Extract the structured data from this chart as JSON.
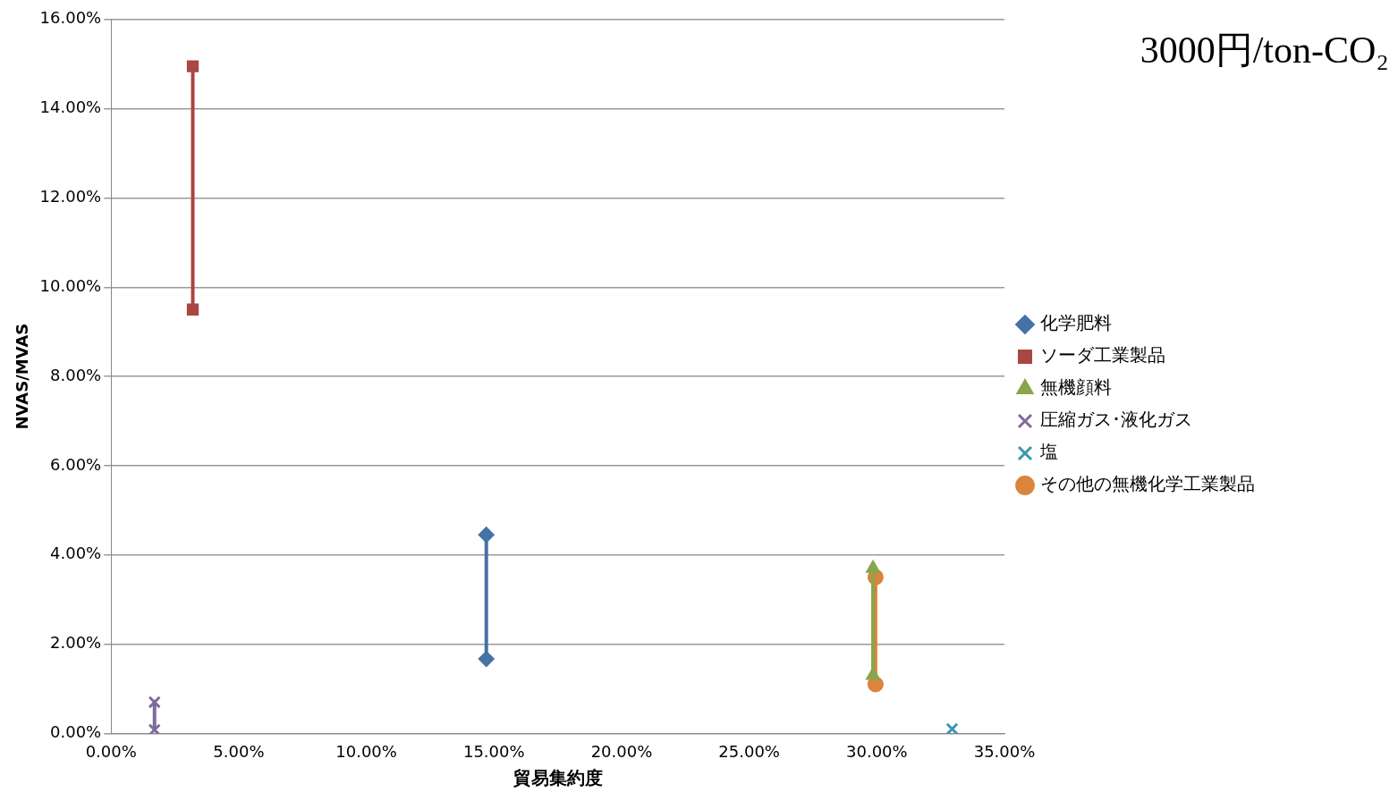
{
  "chart_data": {
    "type": "line",
    "xlabel": "貿易集約度",
    "ylabel": "NVAS/MVAS",
    "annotations": [
      "3000円/ton-CO₂"
    ],
    "xlim": [
      0,
      35
    ],
    "xticks": [
      {
        "value": 0,
        "label": "0.00%"
      },
      {
        "value": 5,
        "label": "5.00%"
      },
      {
        "value": 10,
        "label": "10.00%"
      },
      {
        "value": 15,
        "label": "15.00%"
      },
      {
        "value": 20,
        "label": "20.00%"
      },
      {
        "value": 25,
        "label": "25.00%"
      },
      {
        "value": 30,
        "label": "30.00%"
      },
      {
        "value": 35,
        "label": "35.00%"
      }
    ],
    "ylim": [
      0,
      16
    ],
    "yticks": [
      {
        "value": 0,
        "label": "0.00%"
      },
      {
        "value": 2,
        "label": "2.00%"
      },
      {
        "value": 4,
        "label": "4.00%"
      },
      {
        "value": 6,
        "label": "6.00%"
      },
      {
        "value": 8,
        "label": "8.00%"
      },
      {
        "value": 10,
        "label": "10.00%"
      },
      {
        "value": 12,
        "label": "12.00%"
      },
      {
        "value": 14,
        "label": "14.00%"
      },
      {
        "value": 16,
        "label": "16.00%"
      }
    ],
    "grid": "y",
    "legend": "right",
    "line_style": "solid",
    "series": [
      {
        "name": "化学肥料",
        "color": "#4572a7",
        "marker": "diamond",
        "x": [
          14.7,
          14.7
        ],
        "values": [
          4.45,
          1.67
        ]
      },
      {
        "name": "ソーダ工業製品",
        "color": "#aa4643",
        "marker": "square",
        "x": [
          3.2,
          3.2
        ],
        "values": [
          14.95,
          9.5
        ]
      },
      {
        "name": "無機顔料",
        "color": "#89a54e",
        "marker": "triangle",
        "x": [
          29.85,
          29.85
        ],
        "values": [
          3.7,
          1.3
        ]
      },
      {
        "name": "圧縮ガス･液化ガス",
        "color": "#80699b",
        "marker": "cross",
        "x": [
          1.7,
          1.7
        ],
        "values": [
          0.7,
          0.08
        ]
      },
      {
        "name": "塩",
        "color": "#3d96ae",
        "marker": "cross",
        "x": [
          32.95
        ],
        "values": [
          0.1
        ]
      },
      {
        "name": "その他の無機化学工業製品",
        "color": "#db843d",
        "marker": "circle",
        "x": [
          29.95,
          29.95
        ],
        "values": [
          3.5,
          1.1
        ]
      }
    ]
  }
}
